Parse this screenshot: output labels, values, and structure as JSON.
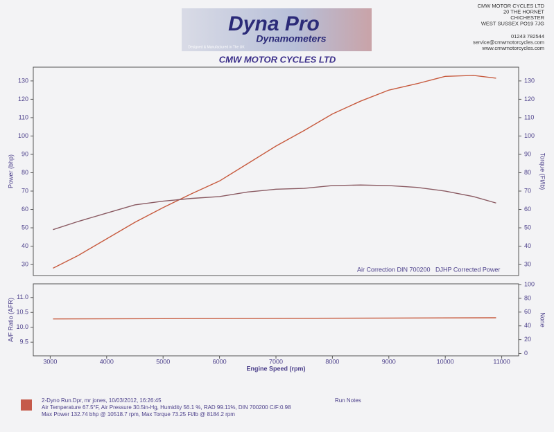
{
  "header": {
    "logo_title": "Dyna Pro",
    "logo_subtitle": "Dynamometers",
    "logo_tagline": "Designed & Manufactured in The UK",
    "company": [
      "CMW MOTOR CYCLES  LTD",
      "20 THE HORNET",
      "CHICHESTER",
      "WEST SUSSEX PO19 7JG",
      "01243 782544",
      "service@cmwmotorcycles.com",
      "www.cmwmotorcycles.com"
    ],
    "title": "CMW MOTOR CYCLES  LTD"
  },
  "chart_data": [
    {
      "type": "line",
      "ylabel": "Power (bhp)",
      "y2label": "Torque (Ft/lb)",
      "annotations": [
        "Air Correction DIN 700200",
        "DJHP Corrected Power"
      ],
      "x": [
        3050,
        3500,
        4000,
        4500,
        5000,
        5500,
        6000,
        6500,
        7000,
        7500,
        8000,
        8500,
        9000,
        9500,
        10000,
        10500,
        10900
      ],
      "xlim": [
        2700,
        11300
      ],
      "ylim": [
        24,
        137.5
      ],
      "yticks": [
        30,
        40,
        50,
        60,
        70,
        80,
        90,
        100,
        110,
        120,
        130
      ],
      "y2lim": [
        24,
        137.5
      ],
      "y2ticks": [
        30,
        40,
        50,
        60,
        70,
        80,
        90,
        100,
        110,
        120,
        130
      ],
      "series": [
        {
          "name": "Power",
          "color": "#c75a3e",
          "values": [
            28,
            35,
            44,
            53,
            61,
            68.5,
            75.5,
            85,
            94.5,
            103,
            112,
            119,
            125,
            128.5,
            132.5,
            133,
            131.5
          ]
        },
        {
          "name": "Torque",
          "color": "#8a5a62",
          "axis": "y2",
          "values": [
            49,
            53.5,
            58,
            62.5,
            64.5,
            66,
            67,
            69.5,
            71,
            71.5,
            73,
            73.3,
            73,
            72,
            70,
            67,
            63.5
          ]
        }
      ]
    },
    {
      "type": "line",
      "ylabel": "A/F Ratio (AFR)",
      "y2label": "None",
      "xlabel": "Engine Speed (rpm)",
      "x": [
        3050,
        5000,
        7000,
        9000,
        10900
      ],
      "xlim": [
        2700,
        11300
      ],
      "xticks": [
        3000,
        4000,
        5000,
        6000,
        7000,
        8000,
        9000,
        10000,
        11000
      ],
      "ylim": [
        9.04,
        11.46
      ],
      "yticks": [
        {
          "value": 11,
          "label": "11.0"
        },
        10.5,
        {
          "value": 10,
          "label": "10.0"
        },
        9.5
      ],
      "y2lim": [
        -3.5,
        101
      ],
      "y2ticks": [
        0,
        20,
        40,
        60,
        80,
        100
      ],
      "series": [
        {
          "name": "AFR",
          "color": "#c75a3e",
          "values": [
            10.28,
            10.29,
            10.3,
            10.31,
            10.32
          ]
        }
      ]
    }
  ],
  "footer": {
    "run": "2-Dyno Run.Dpr,   mr jones,   10/03/2012,   16:26:45",
    "conditions": "Air Temperature 67.5°F, Air Pressure 30.5in-Hg, Humidity 56.1 %, RAD 99.11%,   DIN 700200  C/F:0.98",
    "summary": "Max Power 132.74 bhp @ 10518.7 rpm, Max Torque 73.25 Ft/lb @ 8184.2 rpm",
    "notes": "Run Notes"
  }
}
